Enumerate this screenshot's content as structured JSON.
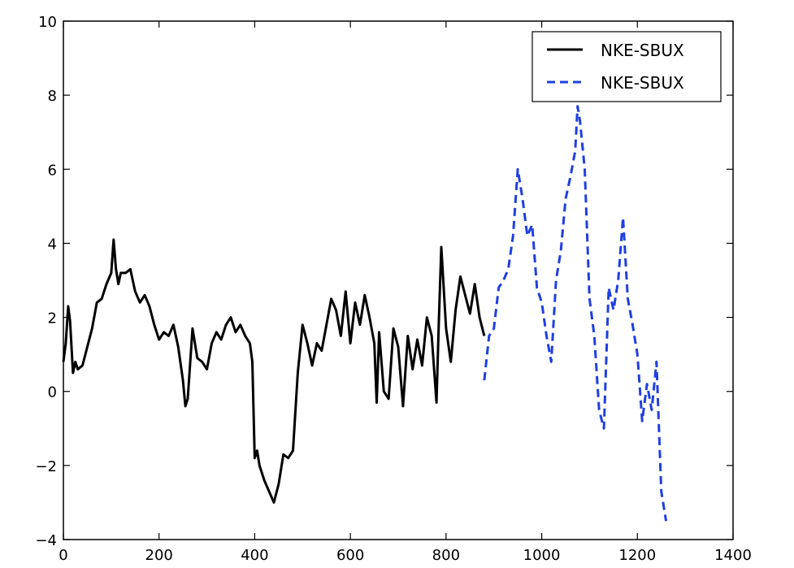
{
  "chart_data": {
    "type": "line",
    "title": "",
    "xlabel": "",
    "ylabel": "",
    "xlim": [
      0,
      1400
    ],
    "ylim": [
      -4,
      10
    ],
    "xticks": [
      0,
      200,
      400,
      600,
      800,
      1000,
      1200,
      1400
    ],
    "yticks": [
      -4,
      -2,
      0,
      2,
      4,
      6,
      8,
      10
    ],
    "grid": false,
    "legend_position": "top-right",
    "series": [
      {
        "name": "NKE-SBUX",
        "color": "#000000",
        "style": "solid",
        "x": [
          0,
          5,
          10,
          14,
          20,
          25,
          30,
          40,
          50,
          60,
          70,
          80,
          90,
          100,
          105,
          110,
          115,
          120,
          130,
          140,
          150,
          160,
          170,
          180,
          190,
          200,
          210,
          220,
          230,
          240,
          250,
          255,
          260,
          270,
          280,
          290,
          300,
          310,
          320,
          330,
          340,
          350,
          360,
          370,
          380,
          390,
          395,
          400,
          405,
          410,
          420,
          430,
          440,
          450,
          460,
          470,
          480,
          490,
          500,
          510,
          520,
          530,
          540,
          550,
          560,
          570,
          580,
          590,
          600,
          610,
          620,
          630,
          640,
          650,
          655,
          660,
          670,
          680,
          690,
          700,
          710,
          720,
          730,
          740,
          750,
          760,
          770,
          780,
          785,
          790,
          800,
          810,
          820,
          830,
          840,
          850,
          860,
          870,
          880
        ],
        "y": [
          0.8,
          1.3,
          2.3,
          1.9,
          0.5,
          0.8,
          0.6,
          0.7,
          1.2,
          1.7,
          2.4,
          2.5,
          2.9,
          3.2,
          4.1,
          3.3,
          2.9,
          3.2,
          3.2,
          3.3,
          2.7,
          2.4,
          2.6,
          2.3,
          1.8,
          1.4,
          1.6,
          1.5,
          1.8,
          1.2,
          0.3,
          -0.4,
          -0.2,
          1.7,
          0.9,
          0.8,
          0.6,
          1.3,
          1.6,
          1.4,
          1.8,
          2.0,
          1.6,
          1.8,
          1.5,
          1.3,
          0.8,
          -1.8,
          -1.6,
          -2.0,
          -2.4,
          -2.7,
          -3.0,
          -2.5,
          -1.7,
          -1.8,
          -1.6,
          0.5,
          1.8,
          1.3,
          0.7,
          1.3,
          1.1,
          1.8,
          2.5,
          2.2,
          1.5,
          2.7,
          1.3,
          2.4,
          1.8,
          2.6,
          2.0,
          1.3,
          -0.3,
          1.6,
          0.0,
          -0.2,
          1.7,
          1.2,
          -0.4,
          1.5,
          0.6,
          1.4,
          0.7,
          2.0,
          1.5,
          -0.3,
          1.9,
          3.9,
          1.7,
          0.8,
          2.2,
          3.1,
          2.6,
          2.1,
          2.9,
          2.0,
          1.5
        ]
      },
      {
        "name": "NKE-SBUX",
        "color": "#1f3fe0",
        "style": "dashed",
        "x": [
          880,
          890,
          900,
          910,
          920,
          930,
          940,
          950,
          960,
          970,
          980,
          990,
          1000,
          1010,
          1020,
          1030,
          1040,
          1050,
          1060,
          1070,
          1075,
          1080,
          1090,
          1100,
          1110,
          1120,
          1130,
          1140,
          1150,
          1160,
          1170,
          1180,
          1190,
          1200,
          1210,
          1220,
          1230,
          1240,
          1250,
          1260
        ],
        "y": [
          0.3,
          1.5,
          1.7,
          2.8,
          3.0,
          3.3,
          4.2,
          6.0,
          5.2,
          4.2,
          4.5,
          2.8,
          2.4,
          1.5,
          0.8,
          3.0,
          3.8,
          5.2,
          5.8,
          6.5,
          7.7,
          7.3,
          6.0,
          2.5,
          1.5,
          -0.5,
          -1.0,
          2.8,
          2.2,
          3.0,
          4.7,
          2.5,
          1.8,
          1.0,
          -0.8,
          0.2,
          -0.5,
          0.8,
          -2.7,
          -3.5
        ]
      }
    ]
  }
}
